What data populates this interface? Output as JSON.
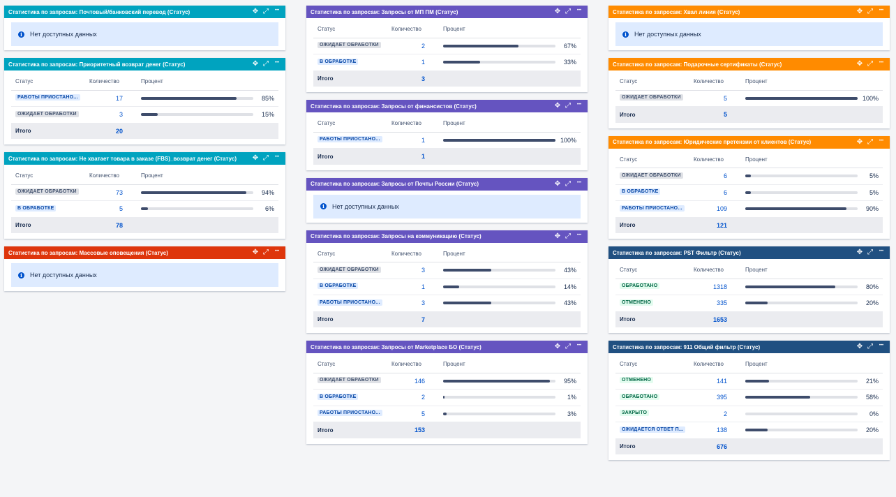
{
  "columns": [
    [
      {
        "title": "Статистика по запросам: Почтовый/банковский перевод (Статус)",
        "color": "#00a3bf",
        "nodata": "Нет доступных данных"
      },
      {
        "title": "Статистика по запросам: Приоритетный возврат денег (Статус)",
        "color": "#00a3bf",
        "headers": {
          "status": "Статус",
          "count": "Количество",
          "percent": "Процент"
        },
        "rows": [
          {
            "status": "РАБОТЫ ПРИОСТАНО...",
            "tone": "blue",
            "count": "17",
            "pct": "85%",
            "val": 0.85
          },
          {
            "status": "ОЖИДАЕТ ОБРАБОТКИ",
            "tone": "gray",
            "count": "3",
            "pct": "15%",
            "val": 0.15
          }
        ],
        "total": {
          "label": "Итого",
          "count": "20"
        }
      },
      {
        "title": "Статистика по запросам: Не хватает товара в заказе (FBS)_возврат денег (Статус)",
        "color": "#00a3bf",
        "headers": {
          "status": "Статус",
          "count": "Количество",
          "percent": "Процент"
        },
        "rows": [
          {
            "status": "ОЖИДАЕТ ОБРАБОТКИ",
            "tone": "gray",
            "count": "73",
            "pct": "94%",
            "val": 0.94
          },
          {
            "status": "В ОБРАБОТКЕ",
            "tone": "blue",
            "count": "5",
            "pct": "6%",
            "val": 0.06
          }
        ],
        "total": {
          "label": "Итого",
          "count": "78"
        }
      },
      {
        "title": "Статистика по запросам: Массовые оповещения (Статус)",
        "color": "#de350b",
        "nodata": "Нет доступных данных"
      }
    ],
    [
      {
        "title": "Статистика по запросам: Запросы от МП ПМ (Статус)",
        "color": "#6554c0",
        "headers": {
          "status": "Статус",
          "count": "Количество",
          "percent": "Процент"
        },
        "rows": [
          {
            "status": "ОЖИДАЕТ ОБРАБОТКИ",
            "tone": "gray",
            "count": "2",
            "pct": "67%",
            "val": 0.67
          },
          {
            "status": "В ОБРАБОТКЕ",
            "tone": "blue",
            "count": "1",
            "pct": "33%",
            "val": 0.33
          }
        ],
        "total": {
          "label": "Итого",
          "count": "3"
        }
      },
      {
        "title": "Статистика по запросам: Запросы от финансистов (Статус)",
        "color": "#6554c0",
        "headers": {
          "status": "Статус",
          "count": "Количество",
          "percent": "Процент"
        },
        "rows": [
          {
            "status": "РАБОТЫ ПРИОСТАНО...",
            "tone": "blue",
            "count": "1",
            "pct": "100%",
            "val": 1.0
          }
        ],
        "total": {
          "label": "Итого",
          "count": "1"
        }
      },
      {
        "title": "Статистика по запросам: Запросы от Почты России (Статус)",
        "color": "#6554c0",
        "nodata": "Нет доступных данных"
      },
      {
        "title": "Статистика по запросам: Запросы на коммуникацию (Статус)",
        "color": "#6554c0",
        "headers": {
          "status": "Статус",
          "count": "Количество",
          "percent": "Процент"
        },
        "rows": [
          {
            "status": "ОЖИДАЕТ ОБРАБОТКИ",
            "tone": "gray",
            "count": "3",
            "pct": "43%",
            "val": 0.43
          },
          {
            "status": "В ОБРАБОТКЕ",
            "tone": "blue",
            "count": "1",
            "pct": "14%",
            "val": 0.14
          },
          {
            "status": "РАБОТЫ ПРИОСТАНО...",
            "tone": "blue",
            "count": "3",
            "pct": "43%",
            "val": 0.43
          }
        ],
        "total": {
          "label": "Итого",
          "count": "7"
        }
      },
      {
        "title": "Статистика по запросам: Запросы от Marketplace БО (Статус)",
        "color": "#6554c0",
        "headers": {
          "status": "Статус",
          "count": "Количество",
          "percent": "Процент"
        },
        "rows": [
          {
            "status": "ОЖИДАЕТ ОБРАБОТКИ",
            "tone": "gray",
            "count": "146",
            "pct": "95%",
            "val": 0.95
          },
          {
            "status": "В ОБРАБОТКЕ",
            "tone": "blue",
            "count": "2",
            "pct": "1%",
            "val": 0.01
          },
          {
            "status": "РАБОТЫ ПРИОСТАНО...",
            "tone": "blue",
            "count": "5",
            "pct": "3%",
            "val": 0.03
          }
        ],
        "total": {
          "label": "Итого",
          "count": "153"
        }
      }
    ],
    [
      {
        "title": "Статистика по запросам: Хвал линия (Статус)",
        "color": "#ff8b00",
        "nodata": "Нет доступных данных"
      },
      {
        "title": "Статистика по запросам: Подарочные сертификаты (Статус)",
        "color": "#ff8b00",
        "headers": {
          "status": "Статус",
          "count": "Количество",
          "percent": "Процент"
        },
        "rows": [
          {
            "status": "ОЖИДАЕТ ОБРАБОТКИ",
            "tone": "gray",
            "count": "5",
            "pct": "100%",
            "val": 1.0
          }
        ],
        "total": {
          "label": "Итого",
          "count": "5"
        }
      },
      {
        "title": "Статистика по запросам: Юридические претензии от клиентов (Статус)",
        "color": "#ff8b00",
        "headers": {
          "status": "Статус",
          "count": "Количество",
          "percent": "Процент"
        },
        "rows": [
          {
            "status": "ОЖИДАЕТ ОБРАБОТКИ",
            "tone": "gray",
            "count": "6",
            "pct": "5%",
            "val": 0.05
          },
          {
            "status": "В ОБРАБОТКЕ",
            "tone": "blue",
            "count": "6",
            "pct": "5%",
            "val": 0.05
          },
          {
            "status": "РАБОТЫ ПРИОСТАНО...",
            "tone": "blue",
            "count": "109",
            "pct": "90%",
            "val": 0.9
          }
        ],
        "total": {
          "label": "Итого",
          "count": "121"
        }
      },
      {
        "title": "Статистика по запросам: PST Фильтр (Статус)",
        "color": "#205081",
        "headers": {
          "status": "Статус",
          "count": "Количество",
          "percent": "Процент"
        },
        "rows": [
          {
            "status": "ОБРАБОТАНО",
            "tone": "green",
            "count": "1318",
            "pct": "80%",
            "val": 0.8
          },
          {
            "status": "ОТМЕНЕНО",
            "tone": "green",
            "count": "335",
            "pct": "20%",
            "val": 0.2
          }
        ],
        "total": {
          "label": "Итого",
          "count": "1653"
        }
      },
      {
        "title": "Статистика по запросам: 911 Общий фильтр (Статус)",
        "color": "#205081",
        "headers": {
          "status": "Статус",
          "count": "Количество",
          "percent": "Процент"
        },
        "rows": [
          {
            "status": "ОТМЕНЕНО",
            "tone": "green",
            "count": "141",
            "pct": "21%",
            "val": 0.21
          },
          {
            "status": "ОБРАБОТАНО",
            "tone": "green",
            "count": "395",
            "pct": "58%",
            "val": 0.58
          },
          {
            "status": "ЗАКРЫТО",
            "tone": "green",
            "count": "2",
            "pct": "0%",
            "val": 0.0
          },
          {
            "status": "ОЖИДАЕТСЯ ОТВЕТ П...",
            "tone": "blue",
            "count": "138",
            "pct": "20%",
            "val": 0.2
          }
        ],
        "total": {
          "label": "Итого",
          "count": "676"
        }
      }
    ]
  ],
  "icons": {
    "move": "move-icon",
    "expand": "expand-icon",
    "more": "more-icon",
    "info": "info-icon"
  }
}
